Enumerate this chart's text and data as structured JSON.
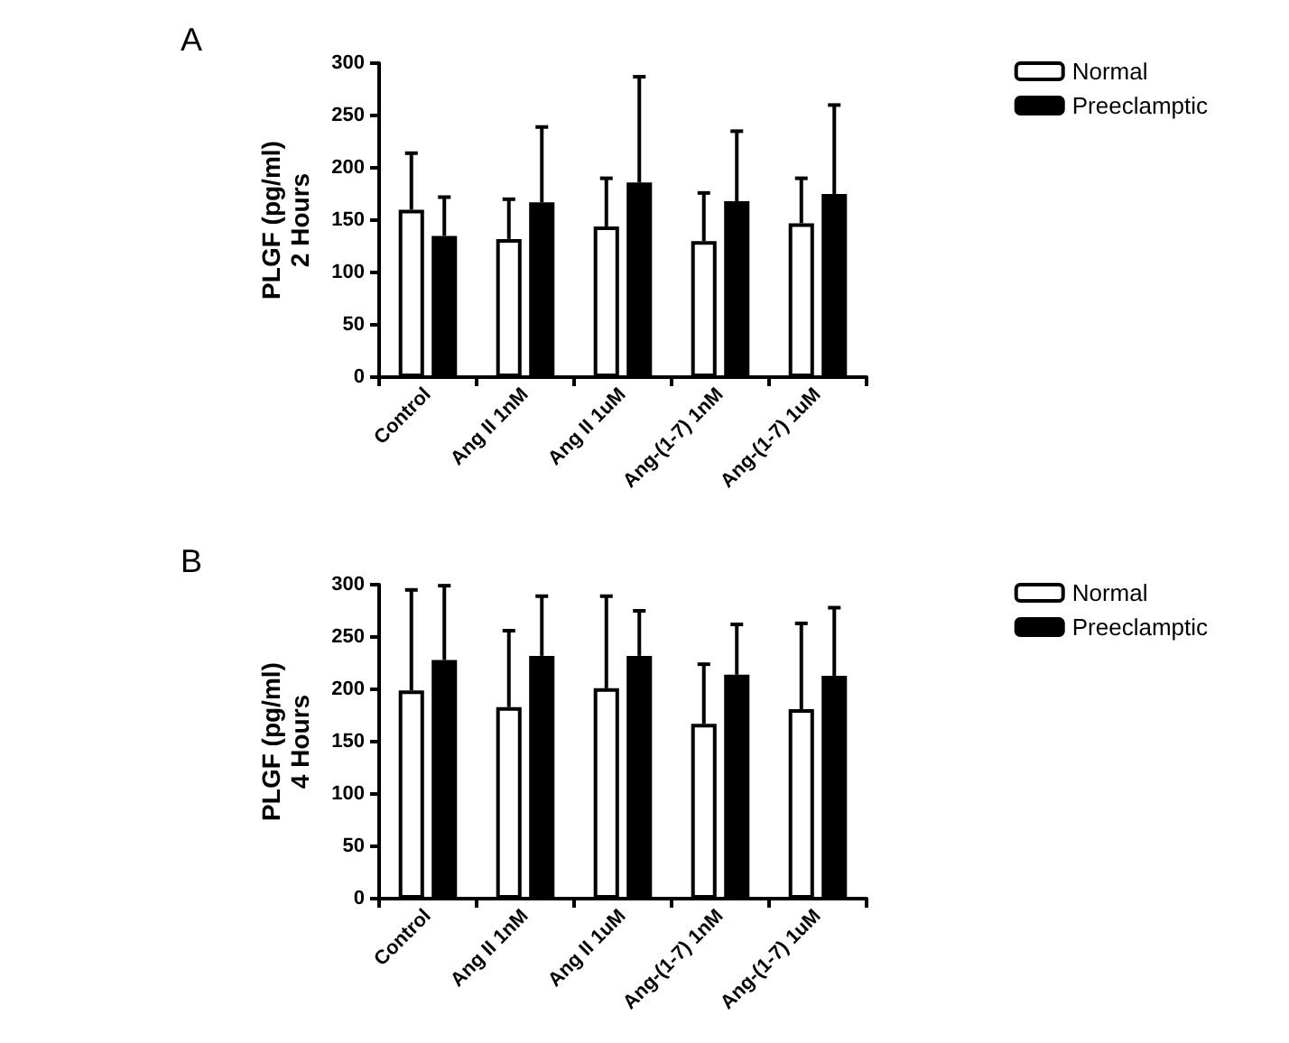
{
  "chart_data": [
    {
      "type": "bar",
      "title": "A",
      "ylabel": "PLGF (pg/ml)\n2 Hours",
      "categories": [
        "Control",
        "Ang II 1nM",
        "Ang II 1uM",
        "Ang-(1-7) 1nM",
        "Ang-(1-7) 1uM"
      ],
      "series": [
        {
          "name": "Normal",
          "color": "#ffffff",
          "values": [
            160,
            132,
            144,
            130,
            147
          ],
          "errors": [
            [
              160,
              214
            ],
            [
              132,
              170
            ],
            [
              144,
              190
            ],
            [
              130,
              176
            ],
            [
              147,
              190
            ]
          ]
        },
        {
          "name": "Preeclamptic",
          "color": "#000000",
          "values": [
            135,
            167,
            186,
            168,
            175
          ],
          "errors": [
            [
              135,
              172
            ],
            [
              167,
              239
            ],
            [
              186,
              287
            ],
            [
              168,
              235
            ],
            [
              175,
              260
            ]
          ]
        }
      ],
      "ylim": [
        0,
        300
      ],
      "yticks": [
        0,
        50,
        100,
        150,
        200,
        250,
        300
      ],
      "grid": false,
      "legend": "top right"
    },
    {
      "type": "bar",
      "title": "B",
      "ylabel": "PLGF (pg/ml)\n4 Hours",
      "categories": [
        "Control",
        "Ang II 1nM",
        "Ang II 1uM",
        "Ang-(1-7) 1nM",
        "Ang-(1-7) 1uM"
      ],
      "series": [
        {
          "name": "Normal",
          "color": "#ffffff",
          "values": [
            199,
            183,
            201,
            167,
            181
          ],
          "errors": [
            [
              199,
              295
            ],
            [
              183,
              256
            ],
            [
              201,
              289
            ],
            [
              167,
              224
            ],
            [
              181,
              263
            ]
          ]
        },
        {
          "name": "Preeclamptic",
          "color": "#000000",
          "values": [
            228,
            232,
            232,
            214,
            213
          ],
          "errors": [
            [
              228,
              299
            ],
            [
              232,
              289
            ],
            [
              232,
              275
            ],
            [
              214,
              262
            ],
            [
              213,
              278
            ]
          ]
        }
      ],
      "ylim": [
        0,
        300
      ],
      "yticks": [
        0,
        50,
        100,
        150,
        200,
        250,
        300
      ],
      "grid": false,
      "legend": "top right"
    }
  ]
}
